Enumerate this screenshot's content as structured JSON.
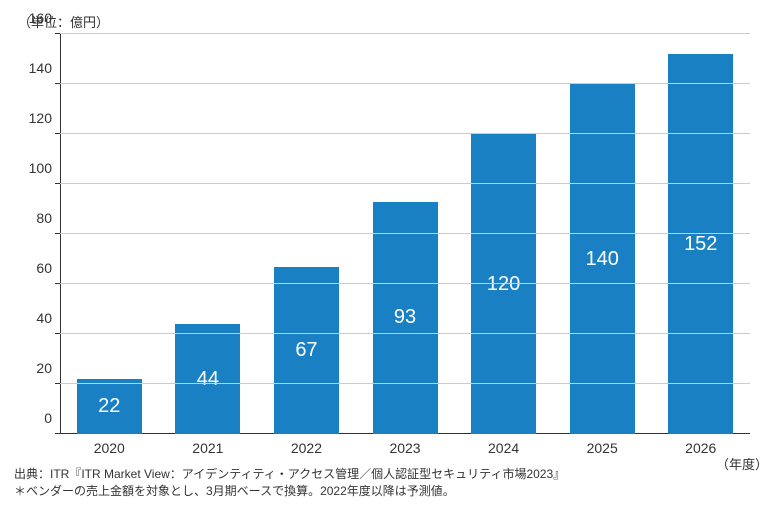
{
  "chart": {
    "type": "bar",
    "unit_label": "（単位：億円）",
    "x_unit_label": "（年度）",
    "categories": [
      "2020",
      "2021",
      "2022",
      "2023",
      "2024",
      "2025",
      "2026"
    ],
    "values": [
      22,
      44,
      67,
      93,
      120,
      140,
      152
    ],
    "bar_color": "#1a80c4",
    "value_label_color": "#ffffff",
    "value_label_fontsize": 20,
    "ylim": [
      0,
      160
    ],
    "ytick_step": 20,
    "yticks": [
      0,
      20,
      40,
      60,
      80,
      100,
      120,
      140,
      160
    ],
    "gridline_color": "#cccccc",
    "axis_color": "#333333",
    "text_color": "#333333",
    "background_color": "#ffffff",
    "tick_label_fontsize": 14,
    "bar_width_ratio": 0.66
  },
  "footnote": {
    "line1": "出典：ITR『ITR Market View：アイデンティティ・アクセス管理／個人認証型セキュリティ市場2023』",
    "line2": "＊ベンダーの売上金額を対象とし、3月期ベースで換算。2022年度以降は予測値。"
  }
}
